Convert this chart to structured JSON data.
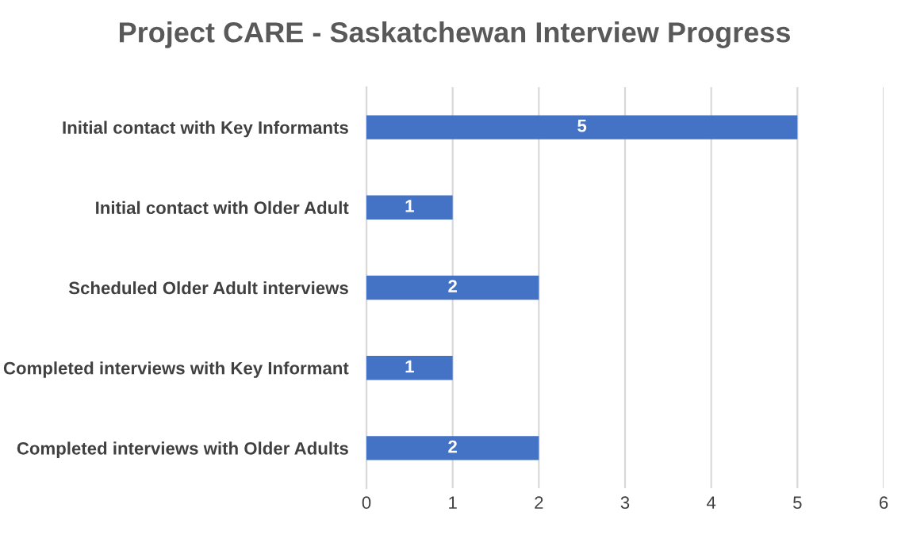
{
  "chart_data": {
    "type": "bar",
    "orientation": "horizontal",
    "title": "Project CARE - Saskatchewan Interview Progress",
    "categories": [
      "Initial contact with Key Informants",
      "Initial contact with Older Adult",
      "Scheduled Older Adult interviews",
      "Completed interviews with Key Informant",
      "Completed interviews with Older Adults"
    ],
    "values": [
      5,
      1,
      2,
      1,
      2
    ],
    "color": "#4472c4",
    "xlim": [
      0,
      6
    ],
    "xticks": [
      0,
      1,
      2,
      3,
      4,
      5,
      6
    ],
    "grid": "x",
    "data_labels": true
  }
}
